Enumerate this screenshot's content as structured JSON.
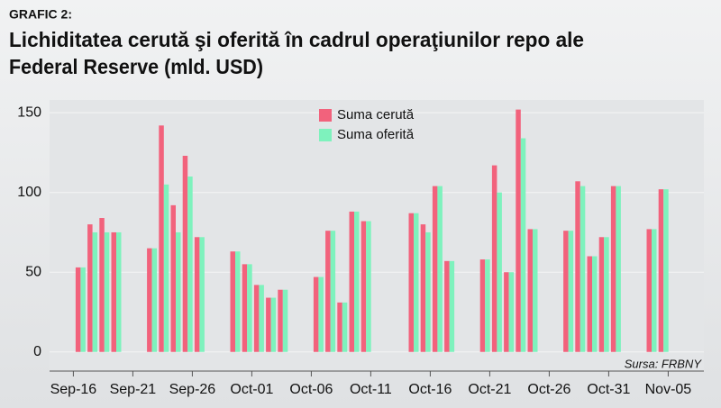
{
  "chart_data": {
    "type": "bar",
    "label": "GRAFIC 2:",
    "title": [
      "Lichiditatea cerută şi oferită în cadrul operaţiunilor repo ale",
      "Federal Reserve (mld. USD)"
    ],
    "source": "Sursa: FRBNY",
    "categories": [
      null,
      null,
      "Sep-16",
      null,
      null,
      null,
      null,
      "Sep-21",
      null,
      null,
      null,
      null,
      "Sep-26",
      null,
      null,
      null,
      null,
      "Oct-01",
      null,
      null,
      null,
      null,
      "Oct-06",
      null,
      null,
      null,
      null,
      "Oct-11",
      null,
      null,
      null,
      null,
      "Oct-16",
      null,
      null,
      null,
      null,
      "Oct-21",
      null,
      null,
      null,
      null,
      "Oct-26",
      null,
      null,
      null,
      null,
      "Oct-31",
      null,
      null,
      null,
      null,
      "Nov-05",
      null,
      null
    ],
    "series": [
      {
        "name": "Suma cerută",
        "color": "#f2627c",
        "values": [
          null,
          null,
          53,
          80,
          84,
          75,
          null,
          null,
          65,
          142,
          92,
          123,
          72,
          null,
          null,
          63,
          55,
          42,
          34,
          39,
          null,
          null,
          47,
          76,
          31,
          88,
          82,
          null,
          null,
          null,
          87,
          80,
          104,
          57,
          null,
          null,
          58,
          117,
          50,
          152,
          77,
          null,
          null,
          76,
          107,
          60,
          72,
          104,
          null,
          null,
          77,
          102,
          null,
          null,
          null
        ]
      },
      {
        "name": "Suma oferită",
        "color": "#7ef2bd",
        "values": [
          null,
          null,
          53,
          75,
          75,
          75,
          null,
          null,
          65,
          105,
          75,
          110,
          72,
          null,
          null,
          63,
          55,
          42,
          34,
          39,
          null,
          null,
          47,
          76,
          31,
          88,
          82,
          null,
          null,
          null,
          87,
          75,
          104,
          57,
          null,
          null,
          58,
          100,
          50,
          134,
          77,
          null,
          null,
          76,
          104,
          60,
          72,
          104,
          null,
          null,
          77,
          102,
          null,
          null,
          null
        ]
      }
    ],
    "ylim": [
      -12,
      158
    ],
    "yticks": [
      0,
      50,
      100,
      150
    ],
    "grid": true,
    "legend": "top"
  }
}
